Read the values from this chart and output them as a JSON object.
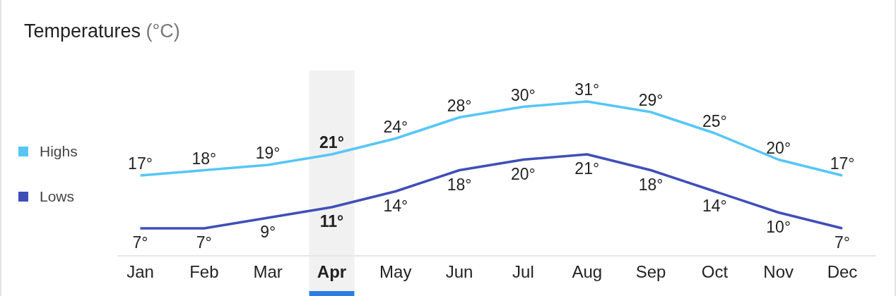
{
  "chart_data": {
    "type": "line",
    "title": "Temperatures (°C)",
    "categories": [
      "Jan",
      "Feb",
      "Mar",
      "Apr",
      "May",
      "Jun",
      "Jul",
      "Aug",
      "Sep",
      "Oct",
      "Nov",
      "Dec"
    ],
    "series": [
      {
        "name": "Highs",
        "color": "#56c6f6",
        "values": [
          17,
          18,
          19,
          21,
          24,
          28,
          30,
          31,
          29,
          25,
          20,
          17
        ],
        "value_labels": [
          "17°",
          "18°",
          "19°",
          "21°",
          "24°",
          "28°",
          "30°",
          "31°",
          "29°",
          "25°",
          "20°",
          "17°"
        ]
      },
      {
        "name": "Lows",
        "color": "#3f4fb8",
        "values": [
          7,
          7,
          9,
          11,
          14,
          18,
          20,
          21,
          18,
          14,
          10,
          7
        ],
        "value_labels": [
          "7°",
          "7°",
          "9°",
          "11°",
          "14°",
          "18°",
          "20°",
          "21°",
          "18°",
          "14°",
          "10°",
          "7°"
        ]
      }
    ],
    "bands": [
      {
        "axis": "x",
        "from": "Apr",
        "to": "Apr",
        "color": "#f1f1f1"
      }
    ],
    "legend": "left",
    "marker": "none",
    "line_style": "solid"
  }
}
